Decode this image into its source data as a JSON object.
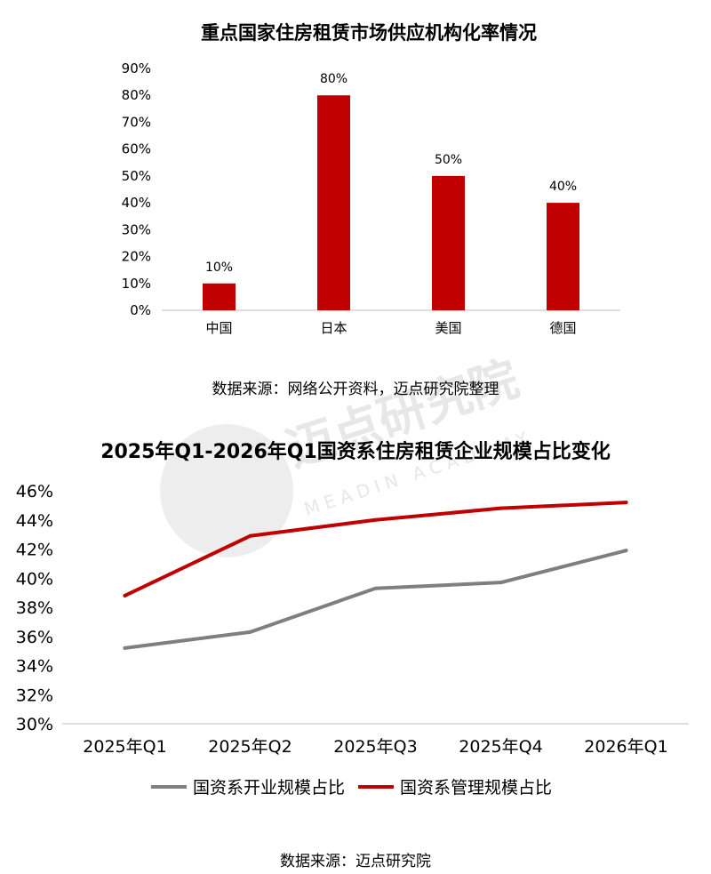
{
  "watermark": {
    "cn": "迈点研究院",
    "en": "MEADIN ACADEMY",
    "color": "#cccccc"
  },
  "charts": {
    "top_source": "数据来源：网络公开资料，迈点研究院整理",
    "bottom_source": "数据来源：迈点研究院"
  },
  "chart_data": [
    {
      "type": "bar",
      "title": "重点国家住房租赁市场供应机构化率情况",
      "categories": [
        "中国",
        "日本",
        "美国",
        "德国"
      ],
      "values": [
        10,
        80,
        50,
        40
      ],
      "value_labels": [
        "10%",
        "80%",
        "50%",
        "40%"
      ],
      "ylim": [
        0,
        90
      ],
      "yticks": [
        0,
        10,
        20,
        30,
        40,
        50,
        60,
        70,
        80,
        90
      ],
      "ytick_labels": [
        "0%",
        "10%",
        "20%",
        "30%",
        "40%",
        "50%",
        "60%",
        "70%",
        "80%",
        "90%"
      ],
      "xlabel": "",
      "ylabel": "",
      "grid": false,
      "color": "#c00000"
    },
    {
      "type": "line",
      "title": "2025年Q1-2026年Q1国资系住房租赁企业规模占比变化",
      "categories": [
        "2025年Q1",
        "2025年Q2",
        "2025年Q3",
        "2025年Q4",
        "2026年Q1"
      ],
      "series": [
        {
          "name": "国资系开业规模占比",
          "values": [
            35.2,
            36.3,
            39.3,
            39.7,
            41.9
          ],
          "color": "#7f7f7f"
        },
        {
          "name": "国资系管理规模占比",
          "values": [
            38.8,
            42.9,
            44.0,
            44.8,
            45.2
          ],
          "color": "#c00000"
        }
      ],
      "ylim": [
        30,
        46
      ],
      "yticks": [
        30,
        32,
        34,
        36,
        38,
        40,
        42,
        44,
        46
      ],
      "ytick_labels": [
        "30%",
        "32%",
        "34%",
        "36%",
        "38%",
        "40%",
        "42%",
        "44%",
        "46%"
      ],
      "xlabel": "",
      "ylabel": "",
      "grid": false,
      "legend": "bottom"
    }
  ]
}
